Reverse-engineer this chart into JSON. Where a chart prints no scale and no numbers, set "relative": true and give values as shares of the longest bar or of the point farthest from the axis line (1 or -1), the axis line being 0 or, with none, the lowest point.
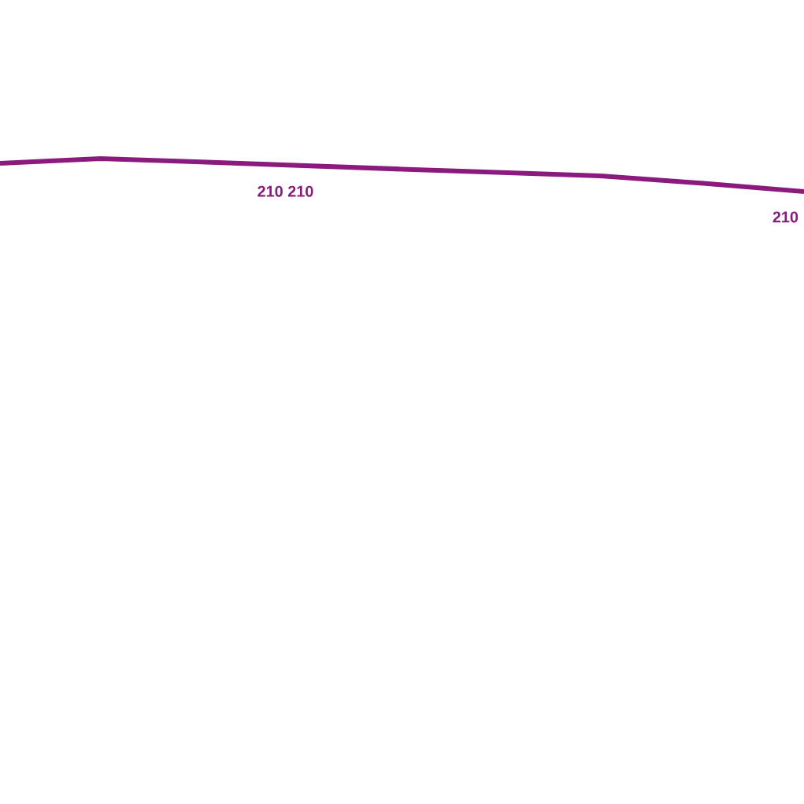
{
  "chart_data": {
    "type": "line",
    "relative": true,
    "categories": [
      null,
      null,
      null,
      null,
      null,
      null,
      null,
      null,
      null
    ],
    "series": [
      {
        "color": "#8a1a7e",
        "values": [
          0.86,
          1,
          0.9,
          0.79,
          0.68,
          0.58,
          0.47,
          0.25,
          0
        ]
      }
    ],
    "annotations": [
      "210 210",
      "210"
    ],
    "marker": "none",
    "line_style": "solid"
  }
}
